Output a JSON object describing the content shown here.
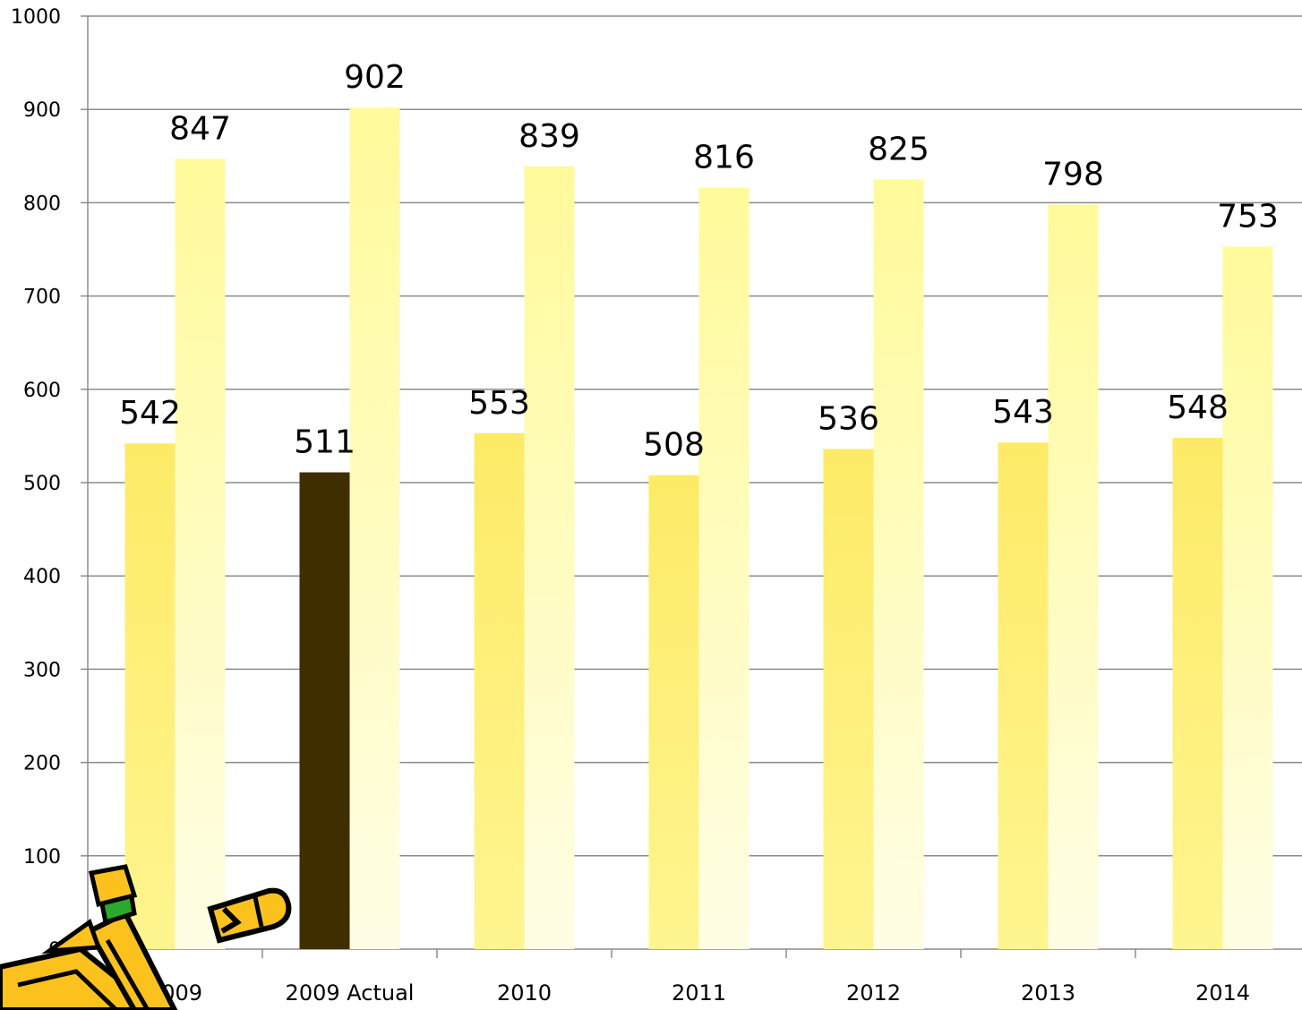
{
  "chart_data": {
    "type": "bar",
    "categories": [
      "2009",
      "2009 Actual",
      "2010",
      "2011",
      "2012",
      "2013",
      "2014"
    ],
    "series": [
      {
        "values": [
          542,
          511,
          553,
          508,
          536,
          543,
          548
        ]
      },
      {
        "values": [
          847,
          902,
          839,
          816,
          825,
          798,
          753
        ]
      }
    ],
    "ylim": [
      0,
      1000
    ],
    "yticks": [
      0,
      100,
      200,
      300,
      400,
      500,
      600,
      700,
      800,
      900,
      1000
    ],
    "grid": true,
    "highlight": {
      "category_index": 1,
      "series_index": 0,
      "color": "#3f2e00"
    },
    "colors": {
      "series0_top": "#fdeb67",
      "series0_bottom": "#fff590",
      "series1_top": "#fffa9a",
      "series1_bottom": "#fffee5",
      "grid": "#8c8c8c",
      "pencil_body": "#fbc21e",
      "pencil_eraser": "#2aa92f"
    },
    "decoration": "pencil-clipart"
  }
}
